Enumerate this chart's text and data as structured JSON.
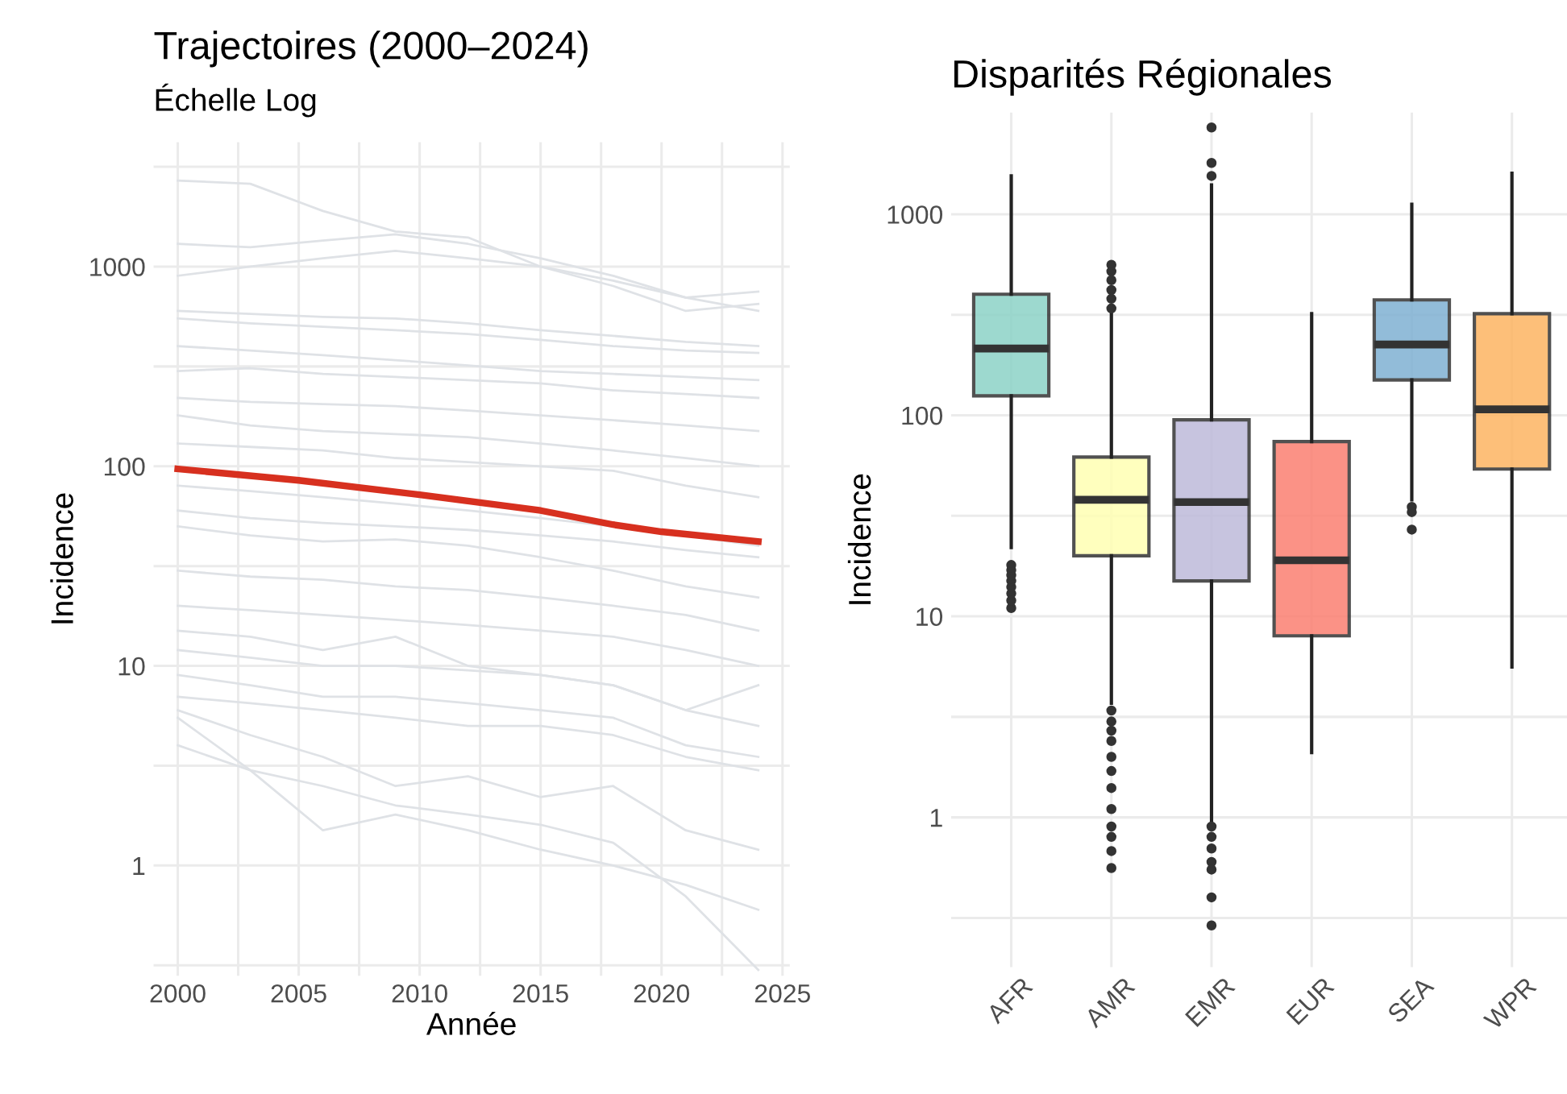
{
  "chart_data": [
    {
      "type": "line",
      "title": "Trajectoires (2000–2024)",
      "subtitle": "Échelle Log",
      "xlabel": "Année",
      "ylabel": "Incidence",
      "log": "y",
      "grid": true,
      "legend": false,
      "x": [
        2000,
        2003,
        2006,
        2009,
        2012,
        2015,
        2018,
        2021,
        2024
      ],
      "xlim": [
        1999,
        2025.3
      ],
      "xticks": [
        2000,
        {
          "value": 2002.5,
          "label": null
        },
        2005,
        {
          "value": 2007.5,
          "label": null
        },
        2010,
        {
          "value": 2012.5,
          "label": null
        },
        2015,
        {
          "value": 2017.5,
          "label": null
        },
        2020,
        {
          "value": 2022.5,
          "label": null
        },
        2025
      ],
      "ylim": [
        0.28,
        4200
      ],
      "yticks": [
        {
          "value": 0.3162,
          "label": null
        },
        1,
        {
          "value": 3.162,
          "label": null
        },
        10,
        {
          "value": 31.62,
          "label": null
        },
        100,
        {
          "value": 316.2,
          "label": null
        },
        1000,
        {
          "value": 3162,
          "label": null
        }
      ],
      "series": [
        {
          "color": "#dfe2e6",
          "values": [
            2700,
            2600,
            1900,
            1500,
            1400,
            1000,
            800,
            600,
            650
          ]
        },
        {
          "color": "#dfe2e6",
          "values": [
            1300,
            1250,
            1350,
            1450,
            1300,
            1100,
            900,
            700,
            600
          ]
        },
        {
          "color": "#dfe2e6",
          "values": [
            900,
            1000,
            1100,
            1200,
            1100,
            1000,
            850,
            700,
            750
          ]
        },
        {
          "color": "#dfe2e6",
          "values": [
            600,
            580,
            560,
            550,
            520,
            480,
            450,
            420,
            400
          ]
        },
        {
          "color": "#dfe2e6",
          "values": [
            550,
            520,
            500,
            480,
            460,
            430,
            400,
            380,
            370
          ]
        },
        {
          "color": "#dfe2e6",
          "values": [
            400,
            380,
            360,
            340,
            320,
            300,
            290,
            280,
            270
          ]
        },
        {
          "color": "#dfe2e6",
          "values": [
            300,
            310,
            290,
            280,
            270,
            260,
            240,
            230,
            220
          ]
        },
        {
          "color": "#dfe2e6",
          "values": [
            220,
            210,
            205,
            200,
            190,
            180,
            170,
            160,
            150
          ]
        },
        {
          "color": "#dfe2e6",
          "values": [
            180,
            160,
            150,
            145,
            140,
            130,
            120,
            110,
            100
          ]
        },
        {
          "color": "#dfe2e6",
          "values": [
            130,
            125,
            120,
            110,
            105,
            100,
            95,
            80,
            70
          ]
        },
        {
          "color": "#dfe2e6",
          "values": [
            80,
            75,
            70,
            65,
            60,
            55,
            50,
            45,
            40
          ]
        },
        {
          "color": "#dfe2e6",
          "values": [
            60,
            55,
            52,
            50,
            48,
            45,
            42,
            38,
            35
          ]
        },
        {
          "color": "#dfe2e6",
          "values": [
            50,
            45,
            42,
            43,
            40,
            35,
            30,
            25,
            22
          ]
        },
        {
          "color": "#dfe2e6",
          "values": [
            30,
            28,
            27,
            25,
            24,
            22,
            20,
            18,
            15
          ]
        },
        {
          "color": "#dfe2e6",
          "values": [
            20,
            19,
            18,
            17,
            16,
            15,
            14,
            12,
            10
          ]
        },
        {
          "color": "#dfe2e6",
          "values": [
            15,
            14,
            12,
            14,
            10,
            9,
            8,
            6,
            8
          ]
        },
        {
          "color": "#dfe2e6",
          "values": [
            12,
            11,
            10,
            10,
            9.5,
            9,
            8,
            6,
            5
          ]
        },
        {
          "color": "#dfe2e6",
          "values": [
            9,
            8,
            7,
            7,
            6.5,
            6,
            5.5,
            4,
            3.5
          ]
        },
        {
          "color": "#dfe2e6",
          "values": [
            7,
            6.5,
            6,
            5.5,
            5,
            5,
            4.5,
            3.5,
            3
          ]
        },
        {
          "color": "#dfe2e6",
          "values": [
            6,
            4.5,
            3.5,
            2.5,
            2.8,
            2.2,
            2.5,
            1.5,
            1.2
          ]
        },
        {
          "color": "#dfe2e6",
          "values": [
            5.5,
            3,
            1.5,
            1.8,
            1.5,
            1.2,
            1.0,
            0.8,
            0.6
          ]
        },
        {
          "color": "#dfe2e6",
          "values": [
            4,
            3,
            2.5,
            2,
            1.8,
            1.6,
            1.3,
            0.7,
            0.3
          ]
        },
        {
          "color": "#d7301f",
          "x": [
            2000,
            2005,
            2010,
            2015,
            2018,
            2020,
            2024
          ],
          "values": [
            97,
            85,
            72,
            60,
            51,
            47,
            42
          ]
        }
      ]
    },
    {
      "type": "box",
      "title": "Disparités Régionales",
      "ylabel": "Incidence",
      "log": "y",
      "grid": true,
      "categories": [
        "AFR",
        "AMR",
        "EMR",
        "EUR",
        "SEA",
        "WPR"
      ],
      "colors": [
        "#8dd3c7",
        "#ffffb3",
        "#bebada",
        "#fb8072",
        "#80b1d3",
        "#fdb462"
      ],
      "ylim": [
        0.18,
        3200
      ],
      "yticks": [
        {
          "value": 0.3162,
          "label": null
        },
        1,
        {
          "value": 3.162,
          "label": null
        },
        10,
        {
          "value": 31.62,
          "label": null
        },
        100,
        {
          "value": 316.2,
          "label": null
        },
        1000
      ],
      "boxes": [
        {
          "low": 22,
          "q1": 125,
          "median": 215,
          "q3": 400,
          "high": 1550,
          "outliers": [
            11,
            12,
            13,
            14,
            15,
            16,
            17,
            18
          ]
        },
        {
          "low": 3.7,
          "q1": 20,
          "median": 38,
          "q3": 62,
          "high": 330,
          "outliers": [
            340,
            380,
            420,
            470,
            520,
            560,
            3.4,
            3,
            2.7,
            2.4,
            2,
            1.7,
            1.4,
            1.1,
            0.9,
            0.8,
            0.68,
            0.56
          ]
        },
        {
          "low": 0.95,
          "q1": 15,
          "median": 37,
          "q3": 95,
          "high": 1400,
          "outliers": [
            1550,
            1800,
            2700,
            0.9,
            0.8,
            0.7,
            0.6,
            0.55,
            0.4,
            0.29
          ]
        },
        {
          "low": 2.1,
          "q1": 8,
          "median": 19,
          "q3": 74,
          "high": 320
        },
        {
          "low": 38,
          "q1": 150,
          "median": 225,
          "q3": 375,
          "high": 1120,
          "outliers": [
            35,
            33,
            27
          ]
        },
        {
          "low": 5.6,
          "q1": 54,
          "median": 107,
          "q3": 320,
          "high": 1600
        }
      ]
    }
  ]
}
